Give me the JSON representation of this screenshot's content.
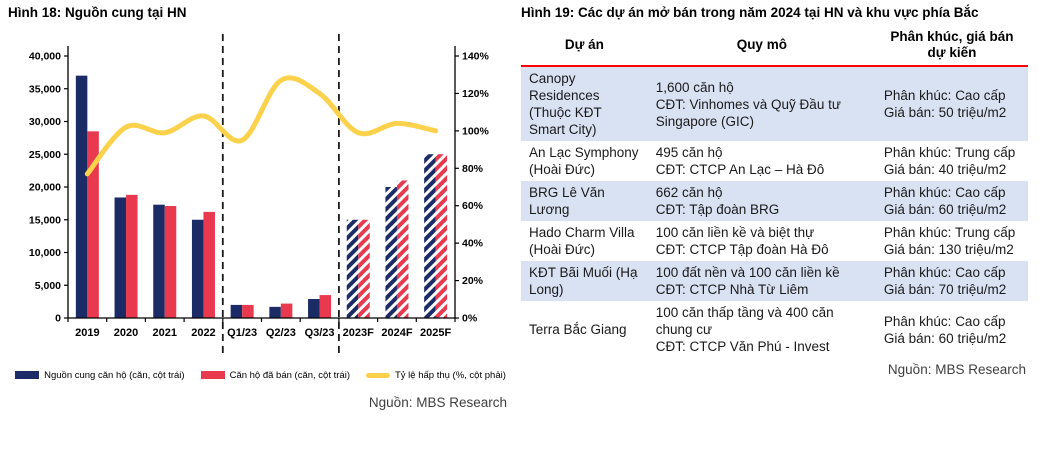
{
  "colors": {
    "navy": "#1b2b66",
    "red": "#e8394f",
    "yellow": "#fcd14b",
    "axis": "#000000",
    "separator": "#1a1a1a",
    "table_header_line": "#ff0000",
    "row_shade": "#d9e2f3"
  },
  "fig18": {
    "title": "Hình 18: Nguồn cung tại HN",
    "source": "Nguồn: MBS Research"
  },
  "chart_data": {
    "type": "bar",
    "subtype": "grouped-bars-with-line",
    "title": "Hình 18: Nguồn cung tại HN",
    "categories": [
      "2019",
      "2020",
      "2021",
      "2022",
      "Q1/23",
      "Q2/23",
      "Q3/23",
      "2023F",
      "2024F",
      "2025F"
    ],
    "series": [
      {
        "name": "Nguồn cung căn hộ (căn, cột trái)",
        "type": "bar",
        "axis": "left",
        "color_key": "navy",
        "values": [
          37000,
          18400,
          17300,
          15000,
          2000,
          1700,
          2900,
          15000,
          20000,
          25000
        ]
      },
      {
        "name": "Căn hộ đã bán (căn, cột trái)",
        "type": "bar",
        "axis": "left",
        "color_key": "red",
        "values": [
          28500,
          18800,
          17100,
          16200,
          2000,
          2200,
          3500,
          15000,
          21000,
          25000
        ]
      },
      {
        "name": "Tỷ lệ hấp thụ (%, cột phải)",
        "type": "line",
        "axis": "right",
        "color_key": "yellow",
        "values": [
          77,
          102,
          99,
          108,
          95,
          127,
          120,
          99,
          104,
          100
        ]
      }
    ],
    "forecast_categories": [
      "2023F",
      "2024F",
      "2025F"
    ],
    "separators_after_index": [
      3,
      6
    ],
    "left_axis": {
      "min": 0,
      "max": 40000,
      "step": 5000
    },
    "right_axis": {
      "min": 0,
      "max": 140,
      "step": 20,
      "suffix": "%"
    },
    "grid": "off",
    "legend_position": "bottom"
  },
  "fig19": {
    "title": "Hình 19: Các dự án mở bán trong năm 2024 tại HN và khu vực phía Bắc",
    "source": "Nguồn: MBS Research",
    "columns": [
      "Dự án",
      "Quy mô",
      "Phân khúc, giá bán dự kiến"
    ],
    "rows": [
      {
        "project": "Canopy Residences (Thuộc KĐT Smart City)",
        "scale": [
          "1,600 căn hộ",
          "CĐT: Vinhomes và Quỹ Đầu tư Singapore (GIC)"
        ],
        "segment": [
          "Phân khúc: Cao cấp",
          "Giá bán: 50 triệu/m2"
        ]
      },
      {
        "project": "An Lạc Symphony (Hoài Đức)",
        "scale": [
          "495 căn hộ",
          "CĐT: CTCP An Lạc – Hà Đô"
        ],
        "segment": [
          "Phân khúc: Trung cấp",
          "Giá bán: 40 triệu/m2"
        ]
      },
      {
        "project": "BRG Lê Văn Lương",
        "scale": [
          "662 căn hộ",
          "CĐT: Tập đoàn BRG"
        ],
        "segment": [
          "Phân khúc: Cao cấp",
          "Giá bán: 60 triệu/m2"
        ]
      },
      {
        "project": "Hado Charm Villa (Hoài Đức)",
        "scale": [
          "100 căn liền kề và biệt thự",
          "CĐT: CTCP Tập đoàn Hà Đô"
        ],
        "segment": [
          "Phân khúc: Trung cấp",
          "Giá bán: 130 triệu/m2"
        ]
      },
      {
        "project": "KĐT Bãi Muối (Hạ Long)",
        "scale": [
          "100 đất nền và 100 căn liền kề",
          "CĐT: CTCP Nhà Từ Liêm"
        ],
        "segment": [
          "Phân khúc: Cao cấp",
          "Giá bán: 70 triệu/m2"
        ]
      },
      {
        "project": "Terra Bắc Giang",
        "scale": [
          "100 căn thấp tầng và 400 căn chung cư",
          "CĐT: CTCP Văn Phú - Invest"
        ],
        "segment": [
          "Phân khúc: Cao cấp",
          "Giá bán: 60 triệu/m2"
        ]
      }
    ]
  }
}
